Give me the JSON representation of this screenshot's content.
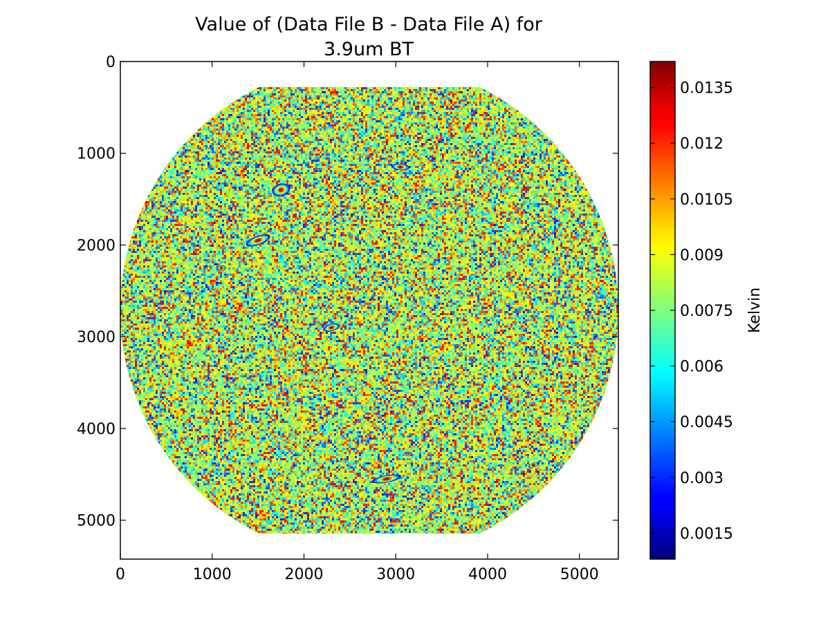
{
  "chart_data": {
    "type": "heatmap",
    "title_lines": [
      "Value of (Data File B - Data File A) for",
      "3.9um BT"
    ],
    "xlabel": "",
    "ylabel": "",
    "xlim": [
      0,
      5424
    ],
    "ylim": [
      5424,
      0
    ],
    "x_ticks": [
      0,
      1000,
      2000,
      3000,
      4000,
      5000
    ],
    "y_ticks": [
      0,
      1000,
      2000,
      3000,
      4000,
      5000
    ],
    "grid": false,
    "colormap": "jet",
    "colorbar": {
      "label": "Kelvin",
      "range": [
        0.0008,
        0.0142
      ],
      "ticks": [
        "0.0015",
        "0.003",
        "0.0045",
        "0.006",
        "0.0075",
        "0.009",
        "0.0105",
        "0.012",
        "0.0135"
      ],
      "tick_values": [
        0.0015,
        0.003,
        0.0045,
        0.006,
        0.0075,
        0.009,
        0.0105,
        0.012,
        0.0135
      ]
    },
    "disk": {
      "center": [
        2712,
        2712
      ],
      "radius": 2712,
      "clip_top": 280,
      "clip_bottom": 5144
    }
  }
}
